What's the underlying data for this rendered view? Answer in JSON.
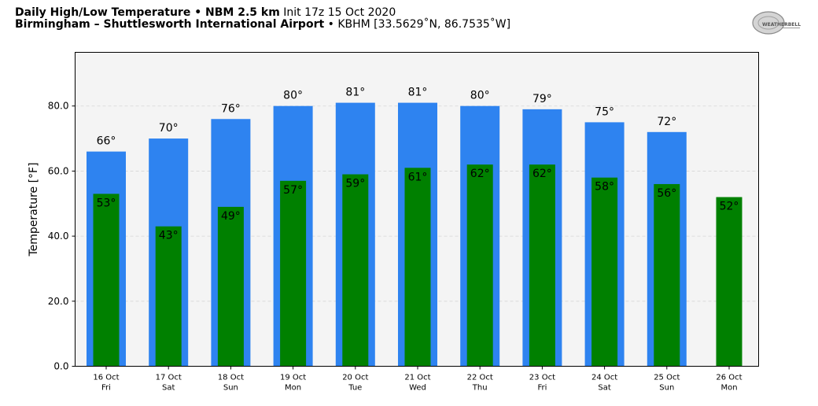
{
  "header": {
    "title_bold": "Daily High/Low Temperature • NBM 2.5 km",
    "title_init": "Init 17z 15 Oct 2020",
    "location_bold": "Birmingham – Shuttlesworth International Airport",
    "location_rest": "• KBHM [33.5629˚N, 86.7535˚W]"
  },
  "logo": {
    "text": "WEATHERBELL"
  },
  "colors": {
    "high": "#2e83f0",
    "low": "#008000",
    "plot_bg": "#f4f4f4"
  },
  "chart_data": {
    "type": "bar",
    "ylabel": "Temperature [°F]",
    "ylim": [
      0,
      96.5
    ],
    "yticks": [
      0,
      20,
      40,
      60,
      80
    ],
    "ytick_labels": [
      "0.0",
      "20.0",
      "40.0",
      "60.0",
      "80.0"
    ],
    "grid": true,
    "categories": [
      {
        "date": "16 Oct",
        "day": "Fri"
      },
      {
        "date": "17 Oct",
        "day": "Sat"
      },
      {
        "date": "18 Oct",
        "day": "Sun"
      },
      {
        "date": "19 Oct",
        "day": "Mon"
      },
      {
        "date": "20 Oct",
        "day": "Tue"
      },
      {
        "date": "21 Oct",
        "day": "Wed"
      },
      {
        "date": "22 Oct",
        "day": "Thu"
      },
      {
        "date": "23 Oct",
        "day": "Fri"
      },
      {
        "date": "24 Oct",
        "day": "Sat"
      },
      {
        "date": "25 Oct",
        "day": "Sun"
      },
      {
        "date": "26 Oct",
        "day": "Mon"
      }
    ],
    "series": [
      {
        "key": "high",
        "values": [
          66,
          70,
          76,
          80,
          81,
          81,
          80,
          79,
          75,
          72,
          null
        ],
        "labels": [
          "66°",
          "70°",
          "76°",
          "80°",
          "81°",
          "81°",
          "80°",
          "79°",
          "75°",
          "72°",
          ""
        ]
      },
      {
        "key": "low",
        "values": [
          53,
          43,
          49,
          57,
          59,
          61,
          62,
          62,
          58,
          56,
          52
        ],
        "labels": [
          "53°",
          "43°",
          "49°",
          "57°",
          "59°",
          "61°",
          "62°",
          "62°",
          "58°",
          "56°",
          "52°"
        ]
      }
    ]
  }
}
